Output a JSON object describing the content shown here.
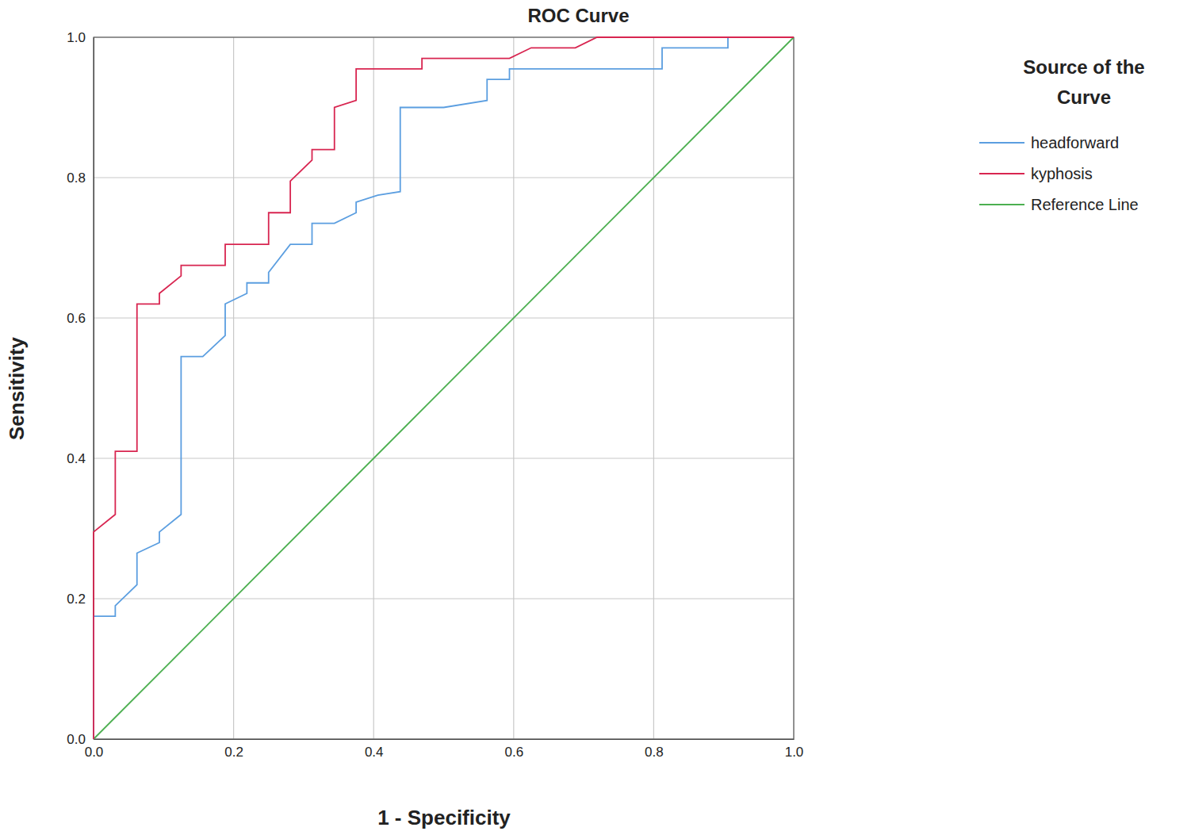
{
  "chart_data": {
    "type": "line",
    "title": "ROC Curve",
    "x_label": "1 - Specificity",
    "y_label": "Sensitivity",
    "legend_title": "Source of the Curve",
    "xlim": [
      0,
      1
    ],
    "ylim": [
      0,
      1
    ],
    "xticks": [
      {
        "value": 0,
        "label": "0.0"
      },
      0.2,
      0.4,
      0.6,
      0.8,
      {
        "value": 1,
        "label": "1.0"
      }
    ],
    "yticks": [
      {
        "value": 0,
        "label": "0.0"
      },
      0.2,
      0.4,
      0.6,
      0.8,
      {
        "value": 1,
        "label": "1.0"
      }
    ],
    "grid": true,
    "legend": "right",
    "series": [
      {
        "name": "headforward",
        "color": "#5b9ee0",
        "x": [
          0,
          0,
          0.031,
          0.031,
          0.062,
          0.062,
          0.094,
          0.094,
          0.125,
          0.125,
          0.156,
          0.188,
          0.188,
          0.219,
          0.219,
          0.25,
          0.25,
          0.281,
          0.312,
          0.312,
          0.344,
          0.375,
          0.375,
          0.406,
          0.438,
          0.438,
          0.5,
          0.562,
          0.562,
          0.594,
          0.594,
          0.812,
          0.812,
          0.906,
          0.906,
          1.0
        ],
        "values": [
          0,
          0.175,
          0.175,
          0.19,
          0.22,
          0.265,
          0.28,
          0.295,
          0.32,
          0.545,
          0.545,
          0.575,
          0.62,
          0.635,
          0.65,
          0.65,
          0.665,
          0.705,
          0.705,
          0.735,
          0.735,
          0.75,
          0.765,
          0.775,
          0.78,
          0.9,
          0.9,
          0.91,
          0.94,
          0.94,
          0.955,
          0.955,
          0.985,
          0.985,
          1.0,
          1.0
        ]
      },
      {
        "name": "kyphosis",
        "color": "#d82550",
        "x": [
          0,
          0,
          0.031,
          0.031,
          0.062,
          0.062,
          0.094,
          0.094,
          0.125,
          0.125,
          0.188,
          0.188,
          0.25,
          0.25,
          0.281,
          0.281,
          0.312,
          0.312,
          0.344,
          0.344,
          0.375,
          0.375,
          0.469,
          0.469,
          0.594,
          0.625,
          0.688,
          0.719,
          1.0
        ],
        "values": [
          0,
          0.295,
          0.32,
          0.41,
          0.41,
          0.62,
          0.62,
          0.635,
          0.66,
          0.675,
          0.675,
          0.705,
          0.705,
          0.75,
          0.75,
          0.795,
          0.825,
          0.84,
          0.84,
          0.9,
          0.91,
          0.955,
          0.955,
          0.97,
          0.97,
          0.985,
          0.985,
          1.0,
          1.0
        ]
      },
      {
        "name": "Reference Line",
        "color": "#4caf50",
        "x": [
          0,
          1
        ],
        "values": [
          0,
          1
        ]
      }
    ]
  }
}
